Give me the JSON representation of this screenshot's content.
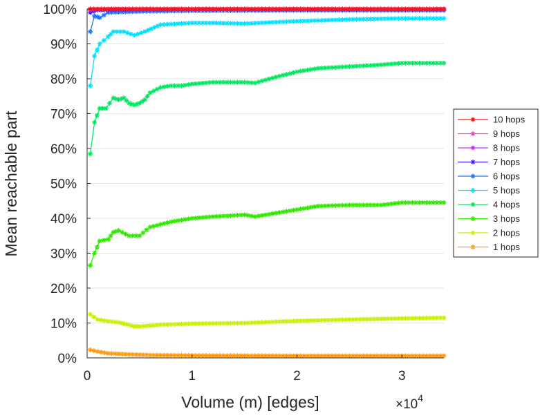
{
  "chart_data": {
    "type": "line",
    "title": "",
    "xlabel": "Volume (m) [edges]",
    "ylabel": "Mean reachable part",
    "x_multiplier_label": "×10",
    "x_multiplier_exp": "4",
    "xlim": [
      0,
      3.4
    ],
    "ylim": [
      0,
      100
    ],
    "grid": "horizontal",
    "legend_position": "right",
    "x_ticks": [
      0,
      1,
      2,
      3
    ],
    "x_tick_labels": [
      "0",
      "1",
      "2",
      "3"
    ],
    "y_ticks": [
      0,
      10,
      20,
      30,
      40,
      50,
      60,
      70,
      80,
      90,
      100
    ],
    "y_tick_labels": [
      "0%",
      "10%",
      "20%",
      "30%",
      "40%",
      "50%",
      "60%",
      "70%",
      "80%",
      "90%",
      "100%"
    ],
    "series": [
      {
        "name": "10 hops",
        "color": "#ff1010",
        "x": [
          0.03,
          0.1,
          0.5,
          1,
          2,
          3,
          3.4
        ],
        "values": [
          100,
          100,
          100,
          100,
          100,
          100,
          100
        ]
      },
      {
        "name": "9 hops",
        "color": "#ff40c0",
        "x": [
          0.03,
          0.1,
          0.5,
          1,
          2,
          3,
          3.4
        ],
        "values": [
          100,
          100,
          100,
          100,
          100,
          100,
          100
        ]
      },
      {
        "name": "8 hops",
        "color": "#c030ff",
        "x": [
          0.03,
          0.1,
          0.5,
          1,
          2,
          3,
          3.4
        ],
        "values": [
          99.8,
          100,
          100,
          100,
          100,
          100,
          100
        ]
      },
      {
        "name": "7 hops",
        "color": "#4020ff",
        "x": [
          0.03,
          0.1,
          0.3,
          0.5,
          1,
          2,
          3,
          3.4
        ],
        "values": [
          99,
          99.7,
          99.8,
          99.9,
          99.9,
          99.9,
          99.9,
          99.9
        ]
      },
      {
        "name": "6 hops",
        "color": "#2070ff",
        "x": [
          0.03,
          0.07,
          0.12,
          0.2,
          0.5,
          1,
          2,
          3,
          3.4
        ],
        "values": [
          93.5,
          98,
          97.5,
          99,
          99.3,
          99.5,
          99.6,
          99.6,
          99.6
        ]
      },
      {
        "name": "5 hops",
        "color": "#00e0ff",
        "x": [
          0.03,
          0.07,
          0.12,
          0.2,
          0.25,
          0.35,
          0.45,
          0.55,
          0.7,
          1.0,
          1.2,
          1.5,
          2.0,
          2.5,
          3.0,
          3.4
        ],
        "values": [
          78,
          86.5,
          90,
          92,
          93.5,
          93.5,
          92.5,
          93.5,
          95.5,
          96,
          96,
          95.8,
          96.5,
          97,
          97.3,
          97.3
        ]
      },
      {
        "name": "4 hops",
        "color": "#00e860",
        "x": [
          0.03,
          0.07,
          0.12,
          0.18,
          0.25,
          0.3,
          0.35,
          0.4,
          0.45,
          0.5,
          0.55,
          0.6,
          0.7,
          0.8,
          0.9,
          1.0,
          1.2,
          1.5,
          1.6,
          1.8,
          2.0,
          2.2,
          2.5,
          2.8,
          3.0,
          3.4
        ],
        "values": [
          58.5,
          67.5,
          71.5,
          71.5,
          74.5,
          74,
          74.5,
          73,
          72.5,
          73,
          74,
          76,
          77.5,
          78,
          78,
          78.5,
          79,
          79,
          78.8,
          80.5,
          82,
          83,
          83.5,
          84,
          84.5,
          84.5
        ]
      },
      {
        "name": "3 hops",
        "color": "#30e800",
        "x": [
          0.03,
          0.07,
          0.12,
          0.2,
          0.25,
          0.3,
          0.4,
          0.5,
          0.6,
          0.8,
          1.0,
          1.2,
          1.5,
          1.6,
          1.8,
          2.0,
          2.2,
          2.5,
          2.8,
          3.0,
          3.4
        ],
        "values": [
          26.5,
          30,
          33.5,
          34,
          36,
          36.5,
          35,
          35,
          37.5,
          39,
          40,
          40.5,
          41,
          40.5,
          41.5,
          42.5,
          43.5,
          43.8,
          43.8,
          44.5,
          44.5
        ]
      },
      {
        "name": "2 hops",
        "color": "#c8f000",
        "x": [
          0.03,
          0.1,
          0.2,
          0.3,
          0.45,
          0.5,
          0.7,
          1.0,
          1.5,
          2.0,
          2.5,
          3.0,
          3.4
        ],
        "values": [
          12.5,
          11,
          10.5,
          10.2,
          9,
          9,
          9.5,
          9.8,
          10,
          10.6,
          11,
          11.3,
          11.5
        ]
      },
      {
        "name": "1 hops",
        "color": "#ff9a10",
        "x": [
          0.03,
          0.1,
          0.2,
          0.4,
          0.6,
          1.0,
          2.0,
          3.0,
          3.4
        ],
        "values": [
          2.3,
          1.8,
          1.3,
          1,
          0.8,
          0.7,
          0.6,
          0.6,
          0.6
        ]
      }
    ]
  }
}
